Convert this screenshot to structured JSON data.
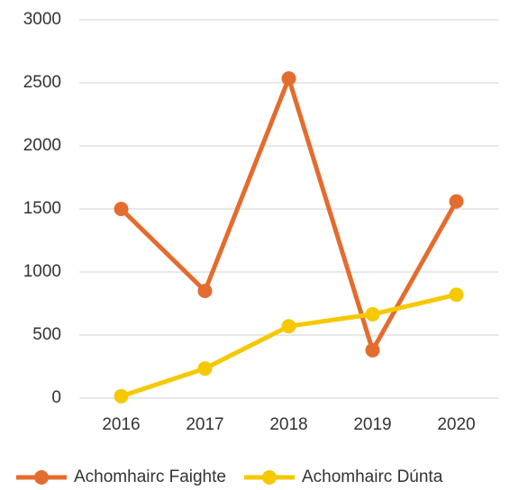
{
  "chart_data": {
    "type": "line",
    "categories": [
      "2016",
      "2017",
      "2018",
      "2019",
      "2020"
    ],
    "series": [
      {
        "name": "Achomhairc Faighte",
        "color": "#e46c2e",
        "values": [
          1500,
          850,
          2535,
          380,
          1560
        ]
      },
      {
        "name": "Achomhairc Dúnta",
        "color": "#f5c800",
        "values": [
          15,
          235,
          570,
          665,
          820
        ]
      }
    ],
    "ylim": [
      0,
      3000
    ],
    "yticks": [
      0,
      500,
      1000,
      1500,
      2000,
      2500,
      3000
    ],
    "grid": true,
    "legend": "bottom"
  }
}
